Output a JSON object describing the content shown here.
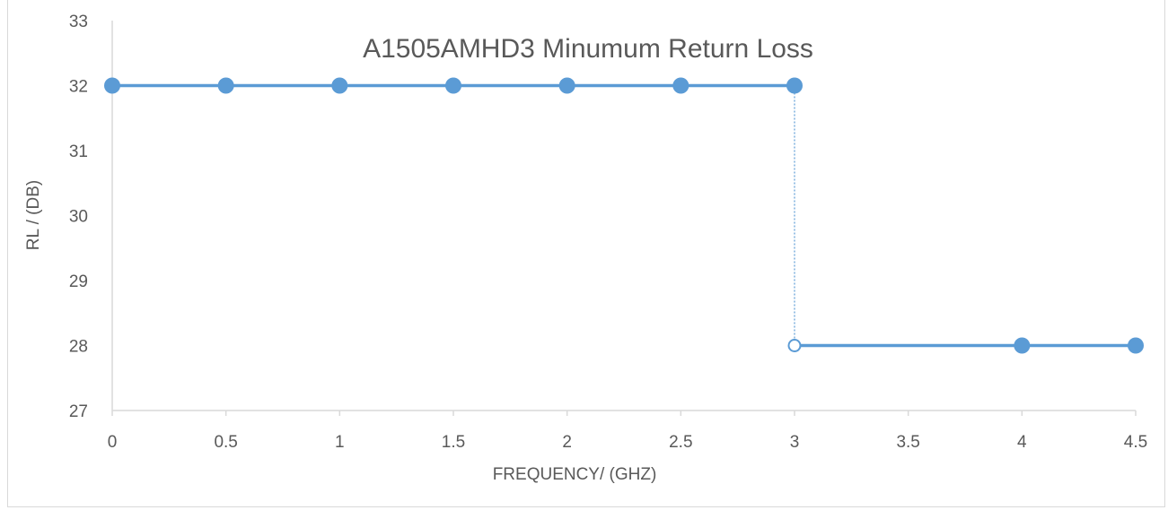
{
  "chart_data": {
    "type": "line",
    "title": "A1505AMHD3 Minumum Return Loss",
    "xlabel": "FREQUENCY/ (GHZ)",
    "ylabel": "RL / (DB)",
    "xlim": [
      0,
      4.5
    ],
    "ylim": [
      27,
      33
    ],
    "x_ticks": [
      0,
      0.5,
      1,
      1.5,
      2,
      2.5,
      3,
      3.5,
      4,
      4.5
    ],
    "x_tick_labels": [
      "0",
      "0.5",
      "1",
      "1.5",
      "2",
      "2.5",
      "3",
      "3.5",
      "4",
      "4.5"
    ],
    "y_ticks": [
      27,
      28,
      29,
      30,
      31,
      32,
      33
    ],
    "y_tick_labels": [
      "27",
      "28",
      "29",
      "30",
      "31",
      "32",
      "33"
    ],
    "grid": false,
    "legend": "none",
    "series": [
      {
        "style": "solid",
        "marker": "filled",
        "points": [
          [
            0,
            32
          ],
          [
            0.5,
            32
          ],
          [
            1,
            32
          ],
          [
            1.5,
            32
          ],
          [
            2,
            32
          ],
          [
            2.5,
            32
          ],
          [
            3,
            32
          ]
        ]
      },
      {
        "style": "dotted",
        "marker": "none",
        "points": [
          [
            3,
            32
          ],
          [
            3,
            28
          ]
        ]
      },
      {
        "style": "solid",
        "marker": "open-start",
        "points": [
          [
            3,
            28
          ],
          [
            4,
            28
          ],
          [
            4.5,
            28
          ]
        ]
      }
    ],
    "colors": {
      "series": "#5b9bd5",
      "axis": "#d9d9d9",
      "text": "#595959"
    }
  }
}
